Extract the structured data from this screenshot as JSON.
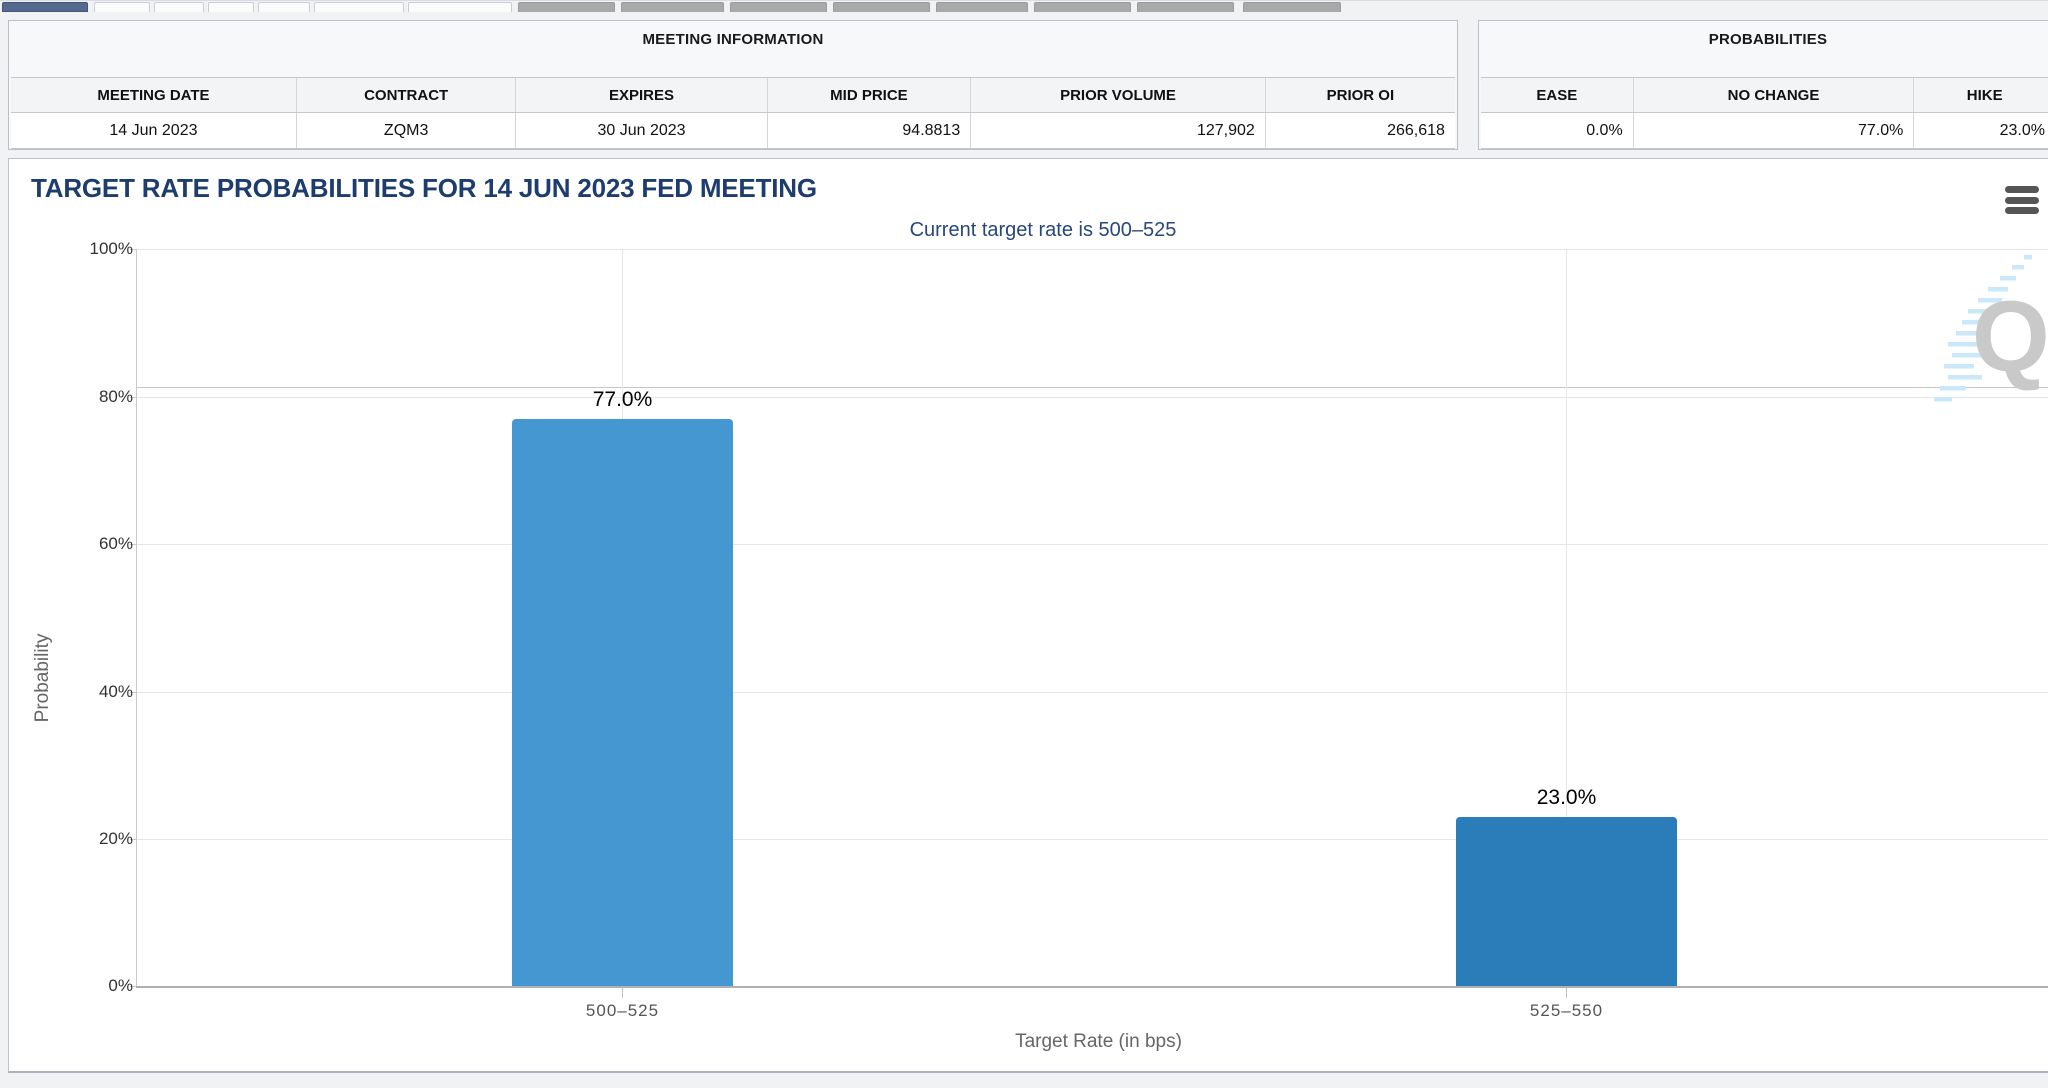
{
  "meeting_information": {
    "title": "MEETING INFORMATION",
    "columns": [
      "MEETING DATE",
      "CONTRACT",
      "EXPIRES",
      "MID PRICE",
      "PRIOR VOLUME",
      "PRIOR OI"
    ],
    "row": {
      "meeting_date": "14 Jun 2023",
      "contract": "ZQM3",
      "expires": "30 Jun 2023",
      "mid_price": "94.8813",
      "prior_volume": "127,902",
      "prior_oi": "266,618"
    }
  },
  "probabilities": {
    "title": "PROBABILITIES",
    "columns": [
      "EASE",
      "NO CHANGE",
      "HIKE"
    ],
    "row": {
      "ease": "0.0%",
      "no_change": "77.0%",
      "hike": "23.0%"
    }
  },
  "chart": {
    "title": "TARGET RATE PROBABILITIES FOR 14 JUN 2023 FED MEETING",
    "subtitle": "Current target rate is 500–525",
    "watermark_letter": "Q",
    "title_color": "#1c3d6e",
    "subtitle_color": "#28477a"
  },
  "chart_data": {
    "type": "bar",
    "categories": [
      "500–525",
      "525–550"
    ],
    "values": [
      77.0,
      23.0
    ],
    "value_labels": [
      "77.0%",
      "23.0%"
    ],
    "bar_colors": [
      "#4497d0",
      "#2a7db8"
    ],
    "title": "TARGET RATE PROBABILITIES FOR 14 JUN 2023 FED MEETING",
    "subtitle": "Current target rate is 500-525",
    "xlabel": "Target Rate (in bps)",
    "ylabel": "Probability",
    "ylim": [
      0,
      100
    ],
    "ytick_labels": [
      "0%",
      "20%",
      "40%",
      "60%",
      "80%",
      "100%"
    ],
    "grid": true,
    "legend": "none"
  }
}
